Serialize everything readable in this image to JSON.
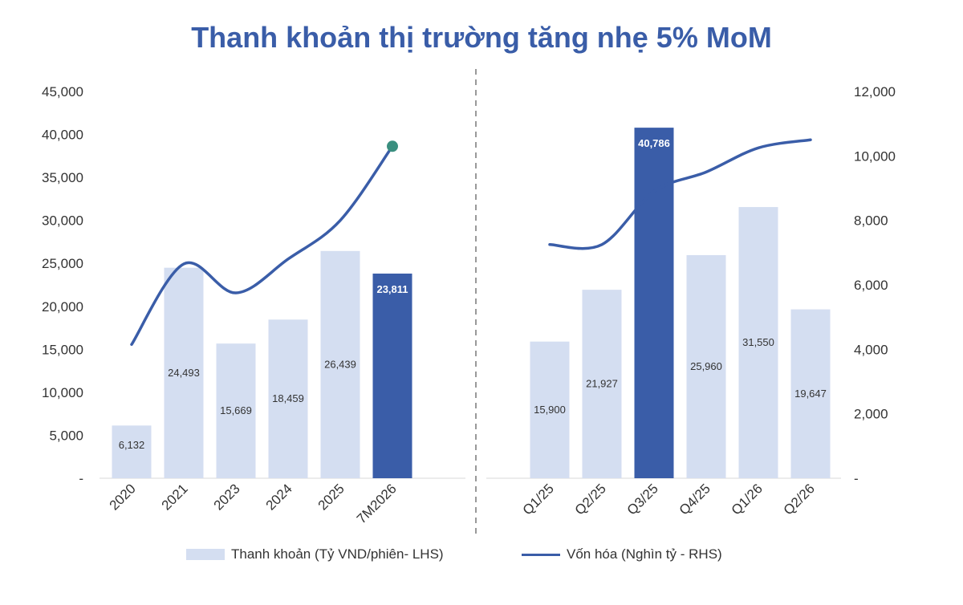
{
  "colors": {
    "title": "#3a5da8",
    "bar": "#d4def1",
    "bar_highlight": "#3a5da8",
    "line": "#3a5da8",
    "marker": "#3a8f7f",
    "separator": "#999999"
  },
  "chart_data": {
    "type": "bar",
    "title": "Thanh khoản thị trường tăng nhẹ 5% MoM",
    "left_axis": {
      "ylim": [
        0,
        45000
      ],
      "ticks": [
        "-",
        "5,000",
        "10,000",
        "15,000",
        "20,000",
        "25,000",
        "30,000",
        "35,000",
        "40,000",
        "45,000"
      ]
    },
    "right_axis": {
      "ylim": [
        0,
        12000
      ],
      "ticks": [
        "-",
        "2,000",
        "4,000",
        "6,000",
        "8,000",
        "10,000",
        "12,000"
      ]
    },
    "legend_placement": "bottom",
    "series": [
      {
        "name": "Thanh khoản (Tỷ VND/phiên- LHS)",
        "type": "bar",
        "axis": "left"
      },
      {
        "name": "Vốn hóa (Nghìn tỷ - RHS)",
        "type": "line",
        "axis": "right"
      }
    ],
    "panels": [
      {
        "categories": [
          "2020",
          "2021",
          "2023",
          "2024",
          "2025",
          "7M2026"
        ],
        "bar_values": [
          6132,
          24493,
          15669,
          18459,
          26439,
          23811
        ],
        "bar_labels": [
          "6,132",
          "24,493",
          "15,669",
          "18,459",
          "26,439",
          "23,811"
        ],
        "highlight": [
          5
        ],
        "line_values": [
          4150,
          6650,
          5750,
          6800,
          8000,
          10300
        ],
        "end_marker": true
      },
      {
        "categories": [
          "Q1/25",
          "Q2/25",
          "Q3/25",
          "Q4/25",
          "Q1/26",
          "Q2/26"
        ],
        "bar_values": [
          15900,
          21927,
          40786,
          25960,
          31550,
          19647
        ],
        "bar_labels": [
          "15,900",
          "21,927",
          "40,786",
          "25,960",
          "31,550",
          "19,647"
        ],
        "highlight": [
          2
        ],
        "line_values": [
          7250,
          7250,
          8900,
          9500,
          10250,
          10500
        ],
        "end_marker": false
      }
    ]
  }
}
